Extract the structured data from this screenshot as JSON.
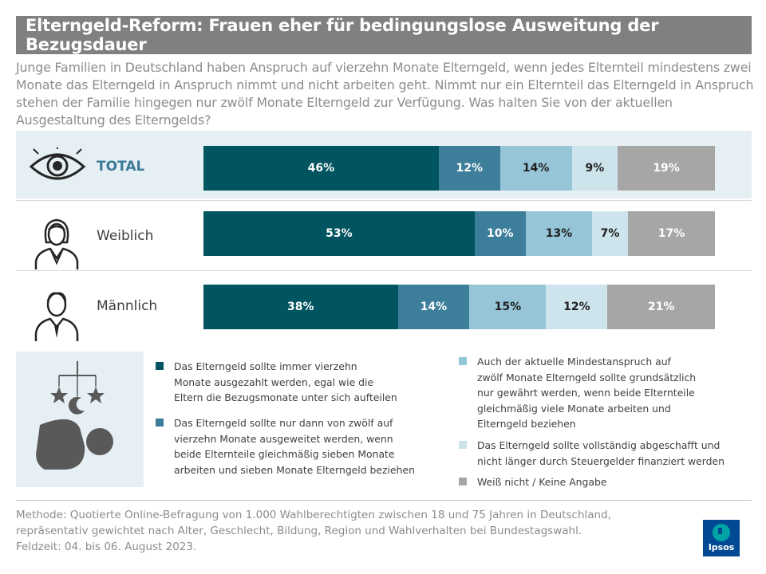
{
  "title": "Elterngeld-Reform: Frauen eher für bedingungslose Ausweitung der Bezugsdauer",
  "subtitle": "Junge Familien in Deutschland haben Anspruch auf vierzehn Monate Elterngeld, wenn jedes Elternteil mindestens zwei Monate das Elterngeld in Anspruch nimmt und nicht arbeiten geht. Nimmt nur ein Elternteil das Elterngeld in Anspruch stehen der Familie hingegen nur zwölf Monate Elterngeld zur Verfügung. Was halten Sie von der aktuellen Ausgestaltung des Elterngelds?",
  "colors": {
    "c1": "#005560",
    "c2": "#3d7f9a",
    "c3": "#96c5d7",
    "c4": "#cde4ec",
    "c5": "#a6a6a6",
    "highlight": "#e6f0f4"
  },
  "chart_data": {
    "type": "bar",
    "stacked": true,
    "orientation": "horizontal",
    "unit": "%",
    "categories": [
      "TOTAL",
      "Weiblich",
      "Männlich"
    ],
    "series": [
      {
        "name": "Das Elterngeld sollte immer vierzehn Monate ausgezahlt werden, egal wie die Eltern die Bezugsmonate unter sich aufteilen",
        "values": [
          46,
          53,
          38
        ],
        "labels": [
          "46%",
          "53%",
          "38%"
        ]
      },
      {
        "name": "Das Elterngeld sollte nur dann von zwölf auf vierzehn Monate ausgeweitet werden, wenn beide Elternteile gleichmäßig sieben Monate arbeiten und sieben Monate Elterngeld beziehen",
        "values": [
          12,
          10,
          14
        ],
        "labels": [
          "12%",
          "10%",
          "14%"
        ]
      },
      {
        "name": "Auch der aktuelle Mindestanspruch auf zwölf Monate Elterngeld sollte grundsätzlich nur gewährt werden, wenn beide Elternteile gleichmäßig viele Monate arbeiten und Elterngeld beziehen",
        "values": [
          14,
          13,
          15
        ],
        "labels": [
          "14%",
          "13%",
          "15%"
        ]
      },
      {
        "name": "Das Elterngeld sollte vollständig abgeschafft und nicht länger durch Steuergelder finanziert werden",
        "values": [
          9,
          7,
          12
        ],
        "labels": [
          "9%",
          "7%",
          "12%"
        ]
      },
      {
        "name": "Weiß nicht / Keine Angabe",
        "values": [
          19,
          17,
          21
        ],
        "labels": [
          "19%",
          "17%",
          "21%"
        ]
      }
    ]
  },
  "rows": [
    {
      "label": "TOTAL",
      "icon": "eye-icon"
    },
    {
      "label": "Weiblich",
      "icon": "woman-icon"
    },
    {
      "label": "Männlich",
      "icon": "man-icon"
    }
  ],
  "legend": [
    {
      "text": "Das Elterngeld sollte immer vierzehn\nMonate ausgezahlt werden, egal wie die\nEltern die Bezugsmonate unter sich aufteilen"
    },
    {
      "text": "Das Elterngeld sollte nur dann von zwölf auf\nvierzehn Monate ausgeweitet werden, wenn\nbeide Elternteile gleichmäßig sieben Monate\narbeiten und  sieben Monate Elterngeld beziehen"
    },
    {
      "text": "Auch der aktuelle Mindestanspruch auf\nzwölf Monate Elterngeld sollte grundsätzlich\nnur gewährt werden, wenn beide Elternteile\ngleichmäßig viele Monate arbeiten und\nElterngeld beziehen"
    },
    {
      "text": "Das Elterngeld sollte vollständig abgeschafft und\nnicht länger durch Steuergelder finanziert werden"
    },
    {
      "text": "Weiß nicht / Keine Angabe"
    }
  ],
  "method": {
    "line1": "Methode: Quotierte Online-Befragung  von 1.000 Wahlberechtigten  zwischen 18 und 75 Jahren in Deutschland,",
    "line2": "repräsentativ gewichtet nach Alter, Geschlecht, Bildung, Region und Wahlverhalten bei Bundestagswahl.",
    "line3": "Feldzeit: 04. bis 06. August 2023."
  },
  "logo": {
    "text": "Ipsos",
    "icon": "ipsos-logo-icon"
  },
  "decor": {
    "icon": "baby-mobile-icon"
  }
}
